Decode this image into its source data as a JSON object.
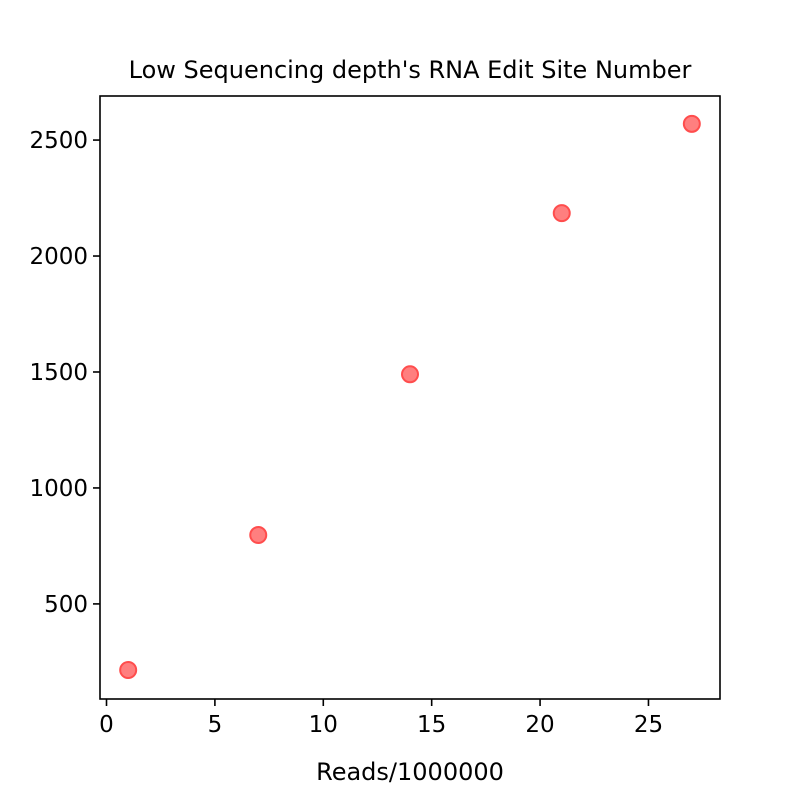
{
  "chart_data": {
    "type": "scatter",
    "title": "Low Sequencing depth's RNA Edit Site Number",
    "xlabel": "Reads/1000000",
    "ylabel": "",
    "x": [
      1,
      7,
      14,
      21,
      27
    ],
    "y": [
      215,
      797,
      1490,
      2185,
      2570
    ],
    "xlim": [
      -0.3,
      28.3
    ],
    "ylim": [
      90,
      2690
    ],
    "xticks": [
      0,
      5,
      10,
      15,
      20,
      25
    ],
    "yticks": [
      500,
      1000,
      1500,
      2000,
      2500
    ],
    "xtick_labels": [
      "0",
      "5",
      "10",
      "15",
      "20",
      "25"
    ],
    "ytick_labels": [
      "500",
      "1000",
      "1500",
      "2000",
      "2500"
    ],
    "grid": false,
    "legend": "none",
    "colors": {
      "point_fill": "#ff7f7f",
      "point_edge": "#ff4d4d",
      "axes": "#000000",
      "background": "#ffffff"
    }
  }
}
